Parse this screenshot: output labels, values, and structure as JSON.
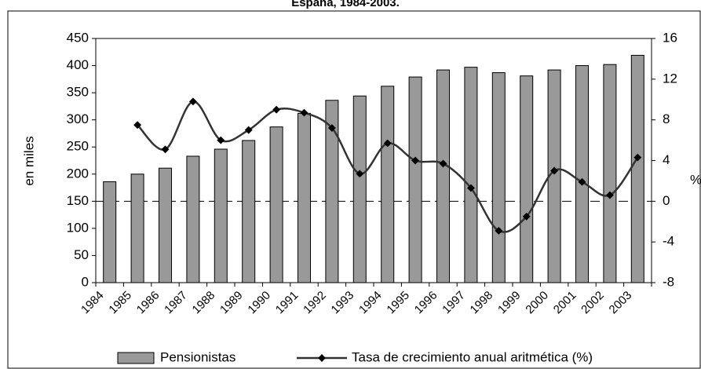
{
  "chart_data": {
    "type": "bar_line",
    "title": "España, 1984-2003.",
    "categories": [
      "1984",
      "1985",
      "1986",
      "1987",
      "1988",
      "1989",
      "1990",
      "1991",
      "1992",
      "1993",
      "1994",
      "1995",
      "1996",
      "1997",
      "1998",
      "1999",
      "2000",
      "2001",
      "2002",
      "2003"
    ],
    "series": [
      {
        "name": "Pensionistas",
        "color": "#999999",
        "axis": "y",
        "values": [
          186,
          200,
          211,
          233,
          246,
          262,
          287,
          312,
          336,
          344,
          362,
          379,
          392,
          397,
          387,
          381,
          392,
          400,
          402,
          419
        ]
      },
      {
        "name": "Tasa de crecimiento anual aritmética (%)",
        "color": "#333333",
        "axis": "y2",
        "values": [
          null,
          7.5,
          5.1,
          9.8,
          6.0,
          7.0,
          9.0,
          8.7,
          7.2,
          2.7,
          5.7,
          4.0,
          3.7,
          1.3,
          -2.9,
          -1.5,
          3.0,
          1.9,
          0.6,
          4.3
        ]
      }
    ],
    "ylabel": "en miles",
    "y2label": "%",
    "ylim": [
      0,
      450
    ],
    "yticks": [
      0,
      50,
      100,
      150,
      200,
      250,
      300,
      350,
      400,
      450
    ],
    "y2lim": [
      -8,
      16
    ],
    "y2ticks": [
      -8,
      -4,
      0,
      4,
      8,
      12,
      16
    ],
    "legend": "bottom"
  }
}
